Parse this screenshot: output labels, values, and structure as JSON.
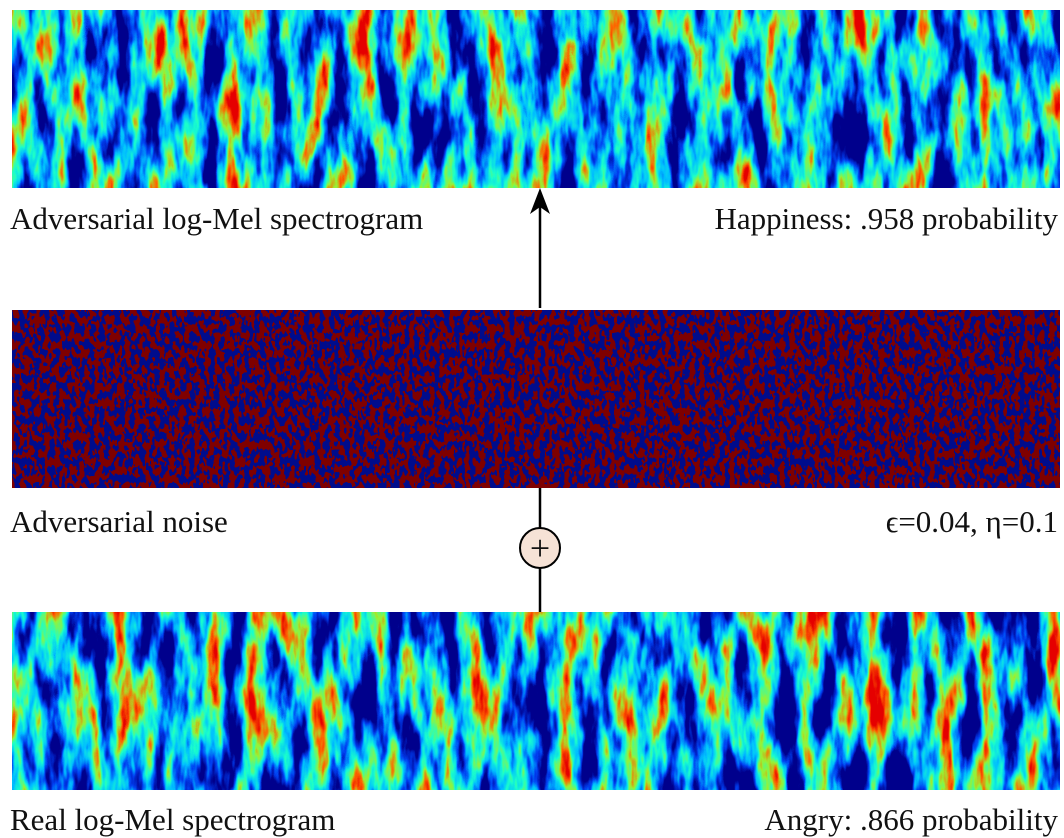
{
  "top": {
    "label": "Adversarial log-Mel spectrogram",
    "result": "Happiness: .958 probability"
  },
  "middle": {
    "label": "Adversarial noise",
    "params": "ϵ=0.04, η=0.1"
  },
  "operator": "+",
  "bottom": {
    "label": "Real log-Mel spectrogram",
    "result": "Angry: .866 probability"
  }
}
